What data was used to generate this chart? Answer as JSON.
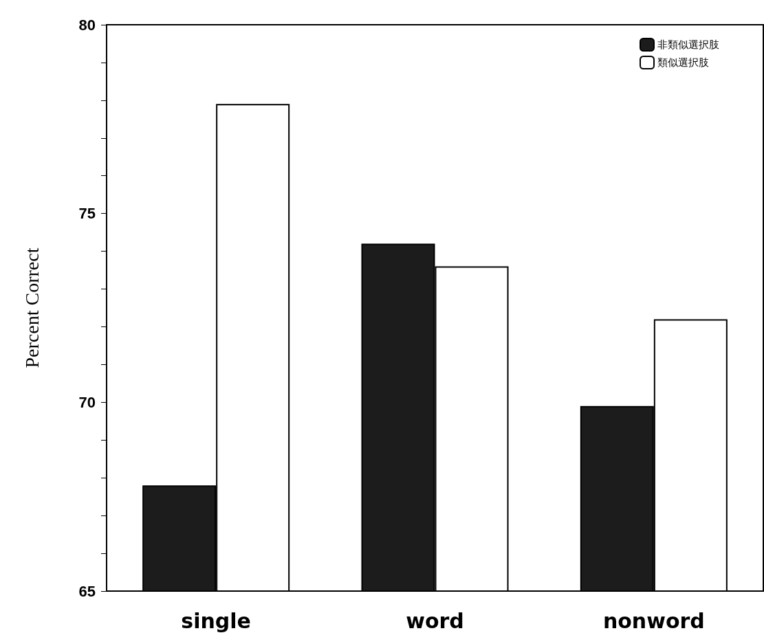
{
  "chart_data": {
    "type": "bar",
    "ylabel": "Percent Correct",
    "categories": [
      "single",
      "word",
      "nonword"
    ],
    "series": [
      {
        "name": "非類似選択肢",
        "color": "#1c1c1c",
        "values": [
          67.8,
          74.2,
          69.9
        ]
      },
      {
        "name": "類似選択肢",
        "color": "#ffffff",
        "values": [
          77.9,
          73.6,
          72.2
        ]
      }
    ],
    "ylim": [
      65,
      80
    ],
    "yticks": [
      65,
      {
        "value": 66,
        "label": null
      },
      {
        "value": 67,
        "label": null
      },
      {
        "value": 68,
        "label": null
      },
      {
        "value": 69,
        "label": null
      },
      70,
      {
        "value": 71,
        "label": null
      },
      {
        "value": 72,
        "label": null
      },
      {
        "value": 73,
        "label": null
      },
      {
        "value": 74,
        "label": null
      },
      75,
      {
        "value": 76,
        "label": null
      },
      {
        "value": 77,
        "label": null
      },
      {
        "value": 78,
        "label": null
      },
      {
        "value": 79,
        "label": null
      },
      80
    ],
    "grid": false,
    "legend": "top right"
  }
}
